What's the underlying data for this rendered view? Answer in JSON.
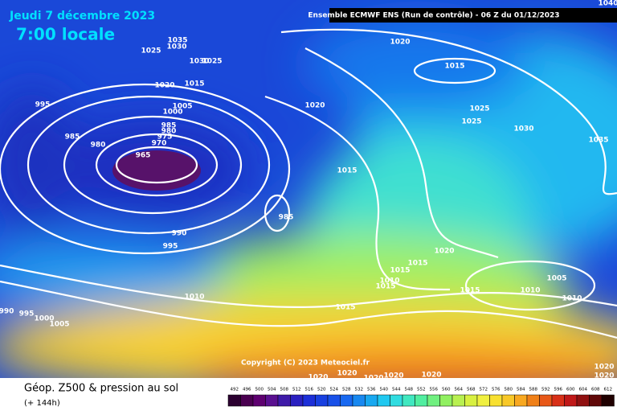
{
  "header": {
    "date": "Jeudi 7 décembre 2023",
    "time": "7:00 locale",
    "run": "Ensemble ECMWF ENS  (Run de contrôle)  -  06 Z du 01/12/2023"
  },
  "copyright": "Copyright (C) 2023 Meteociel.fr",
  "isobar_labels": [
    "1040",
    "1035",
    "1030",
    "1025",
    "1030",
    "1025",
    "1020",
    "1015",
    "995",
    "1005",
    "1000",
    "985",
    "980",
    "975",
    "970",
    "985",
    "980",
    "965",
    "990",
    "995",
    "985",
    "1020",
    "1015",
    "1020",
    "1025",
    "1025",
    "1030",
    "1035",
    "1015",
    "1020",
    "1015",
    "1015",
    "1010",
    "1015",
    "1015",
    "1005",
    "1010",
    "1010",
    "1010",
    "990",
    "995",
    "1000",
    "1005",
    "1015",
    "1020",
    "1020",
    "1020",
    "1020",
    "1020",
    "1020",
    "1020"
  ],
  "legend": {
    "title": "Géop. Z500 & pression au sol",
    "lead": "(+ 144h)",
    "scale": [
      492,
      496,
      500,
      504,
      508,
      512,
      516,
      520,
      524,
      528,
      532,
      536,
      540,
      544,
      548,
      552,
      556,
      560,
      564,
      568,
      572,
      576,
      580,
      584,
      588,
      592,
      596,
      600,
      604,
      608,
      612
    ],
    "colors": [
      "#2b0030",
      "#4a0050",
      "#5e0070",
      "#5a1090",
      "#3e1aa8",
      "#2a20c0",
      "#1c2fd8",
      "#1840e0",
      "#1850e8",
      "#1868f0",
      "#1888f0",
      "#18a8f0",
      "#20c8f0",
      "#30dce0",
      "#40e8c0",
      "#50eea0",
      "#70f080",
      "#90f060",
      "#b8f050",
      "#d8f040",
      "#f0f040",
      "#f8e030",
      "#f8c828",
      "#f8a820",
      "#f08018",
      "#e85818",
      "#d83018",
      "#c01818",
      "#901010",
      "#600808",
      "#200000"
    ]
  }
}
